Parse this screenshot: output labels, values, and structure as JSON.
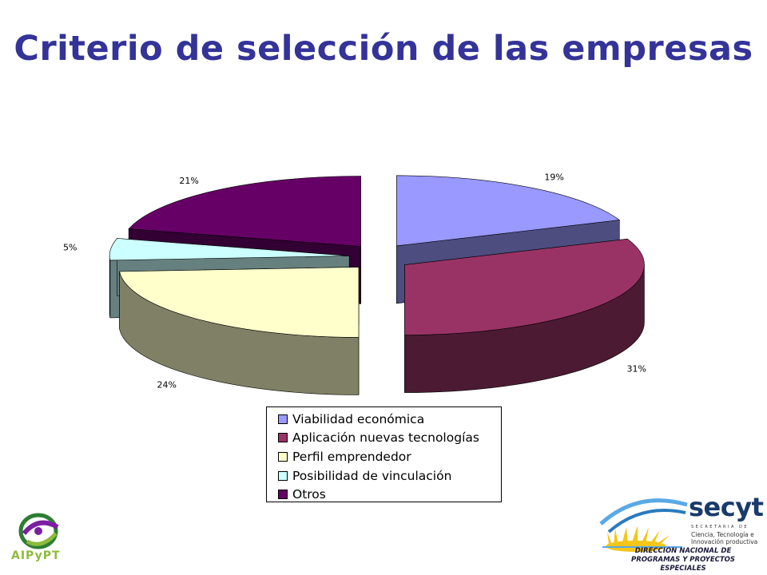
{
  "slide": {
    "title": "Criterio de selección de las empresas"
  },
  "chart_data": {
    "type": "pie",
    "style": "3d-exploded",
    "categories": [
      "Viabilidad económica",
      "Aplicación nuevas tecnologías",
      "Perfil emprendedor",
      "Posibilidad de vinculación",
      "Otros"
    ],
    "values": [
      19,
      31,
      24,
      5,
      21
    ],
    "data_labels": [
      "19%",
      "31%",
      "24%",
      "5%",
      "21%"
    ],
    "colors": [
      "#9999FF",
      "#993366",
      "#FFFFCC",
      "#CCFFFF",
      "#660066"
    ],
    "side_colors": [
      "#4D4D80",
      "#4D1A33",
      "#808066",
      "#668080",
      "#330033"
    ],
    "legend_position": "bottom"
  },
  "logos": {
    "left": {
      "text": "AIPyPT",
      "icon": "aipypt-logo"
    },
    "right": {
      "brand": "secyt",
      "small_caps": "SECRETARIA DE",
      "subtitle": "Ciencia, Tecnología e\nInnovación productiva",
      "department": "DIRECCION NACIONAL DE\nPROGRAMAS Y PROYECTOS ESPECIALES",
      "icon": "sunrise-logo"
    }
  }
}
